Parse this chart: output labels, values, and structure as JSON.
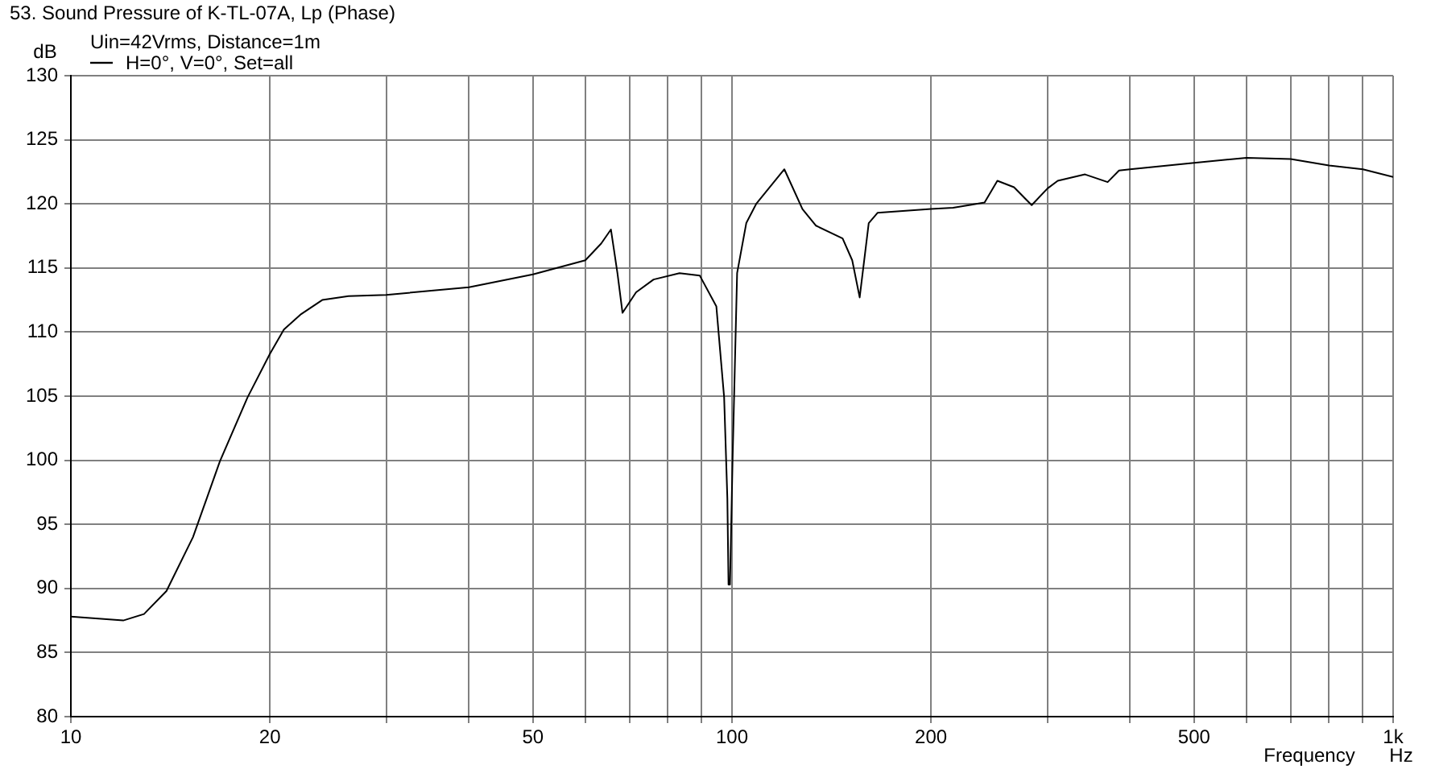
{
  "chart_data": {
    "type": "line",
    "title": "53. Sound Pressure of K-TL-07A, Lp (Phase)",
    "subtitle": "Uin=42Vrms, Distance=1m",
    "xlabel": "Frequency",
    "ylabel": "dB",
    "annotations": [
      "Hz"
    ],
    "log": "x",
    "grid": true,
    "legend": "top left",
    "marker": "none",
    "line_style": "solid",
    "xlim": [
      10,
      1000
    ],
    "ylim": [
      80,
      130
    ],
    "xticks": [
      10,
      20,
      {
        "value": 30,
        "label": null
      },
      {
        "value": 40,
        "label": null
      },
      50,
      {
        "value": 60,
        "label": null
      },
      {
        "value": 70,
        "label": null
      },
      {
        "value": 80,
        "label": null
      },
      {
        "value": 90,
        "label": null
      },
      100,
      200,
      {
        "value": 300,
        "label": null
      },
      {
        "value": 400,
        "label": null
      },
      500,
      {
        "value": 600,
        "label": null
      },
      {
        "value": 700,
        "label": null
      },
      {
        "value": 800,
        "label": null
      },
      {
        "value": 900,
        "label": null
      },
      {
        "value": 1000,
        "label": "1k"
      }
    ],
    "yticks": [
      80,
      85,
      90,
      95,
      100,
      105,
      110,
      115,
      120,
      125,
      130
    ],
    "x": [
      10,
      12,
      12.9,
      13.95,
      15.3,
      16.8,
      18.5,
      20,
      21,
      22.3,
      24,
      26.3,
      30,
      40,
      50,
      60,
      63.4,
      65.6,
      67.1,
      68.3,
      71.6,
      76.1,
      83.3,
      89.4,
      94.7,
      97.3,
      98.4,
      98.8,
      99.3,
      100.2,
      101.8,
      105.1,
      108.8,
      120,
      127.8,
      134,
      147,
      152,
      156,
      161,
      166,
      200,
      216,
      241,
      252,
      267,
      284,
      300,
      311,
      342,
      370,
      385,
      400,
      500,
      600,
      700,
      800,
      900,
      1000
    ],
    "series": [
      {
        "name": "H=0°, V=0°, Set=all",
        "color": "#000000",
        "values": [
          87.8,
          87.5,
          88,
          89.8,
          94,
          99.9,
          104.9,
          108.3,
          110.2,
          111.4,
          112.5,
          112.8,
          112.9,
          113.5,
          114.5,
          115.6,
          116.9,
          118,
          114.6,
          111.5,
          113.1,
          114.1,
          114.6,
          114.4,
          112,
          104.9,
          97,
          90.3,
          90.3,
          100,
          114.6,
          118.5,
          120,
          122.7,
          119.6,
          118.3,
          117.3,
          115.6,
          112.7,
          118.5,
          119.3,
          119.6,
          119.7,
          120.1,
          121.8,
          121.3,
          119.9,
          121.2,
          121.8,
          122.3,
          121.7,
          122.6,
          122.7,
          123.2,
          123.6,
          123.5,
          123,
          122.7,
          122.1
        ]
      }
    ]
  }
}
